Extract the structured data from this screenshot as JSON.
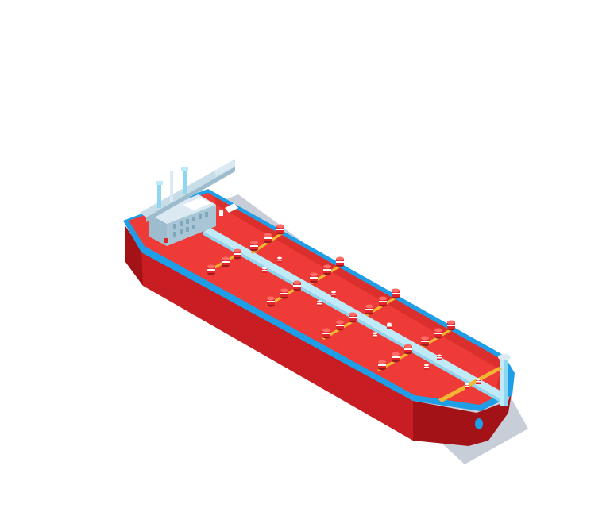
{
  "scene": {
    "subject": "oil-tanker-ship",
    "view": "isometric",
    "colors": {
      "background": "#ffffff",
      "shadow": "#c7ced8",
      "hull_dark": "#a31216",
      "hull_mid": "#c81d22",
      "hull_light": "#d8272c",
      "deck": "#ef3b37",
      "deck_shade": "#db2f2d",
      "rim_blue": "#1e9ee6",
      "rim_light": "#6fd0f5",
      "pipe_light": "#bfeaf8",
      "pipe_mid": "#8fd7f0",
      "yellow_pipe": "#f2b632",
      "superstructure": "#c7dde8",
      "superstructure_dark": "#a9c6d6",
      "valve_red": "#e0252b",
      "valve_white": "#ffffff"
    }
  }
}
